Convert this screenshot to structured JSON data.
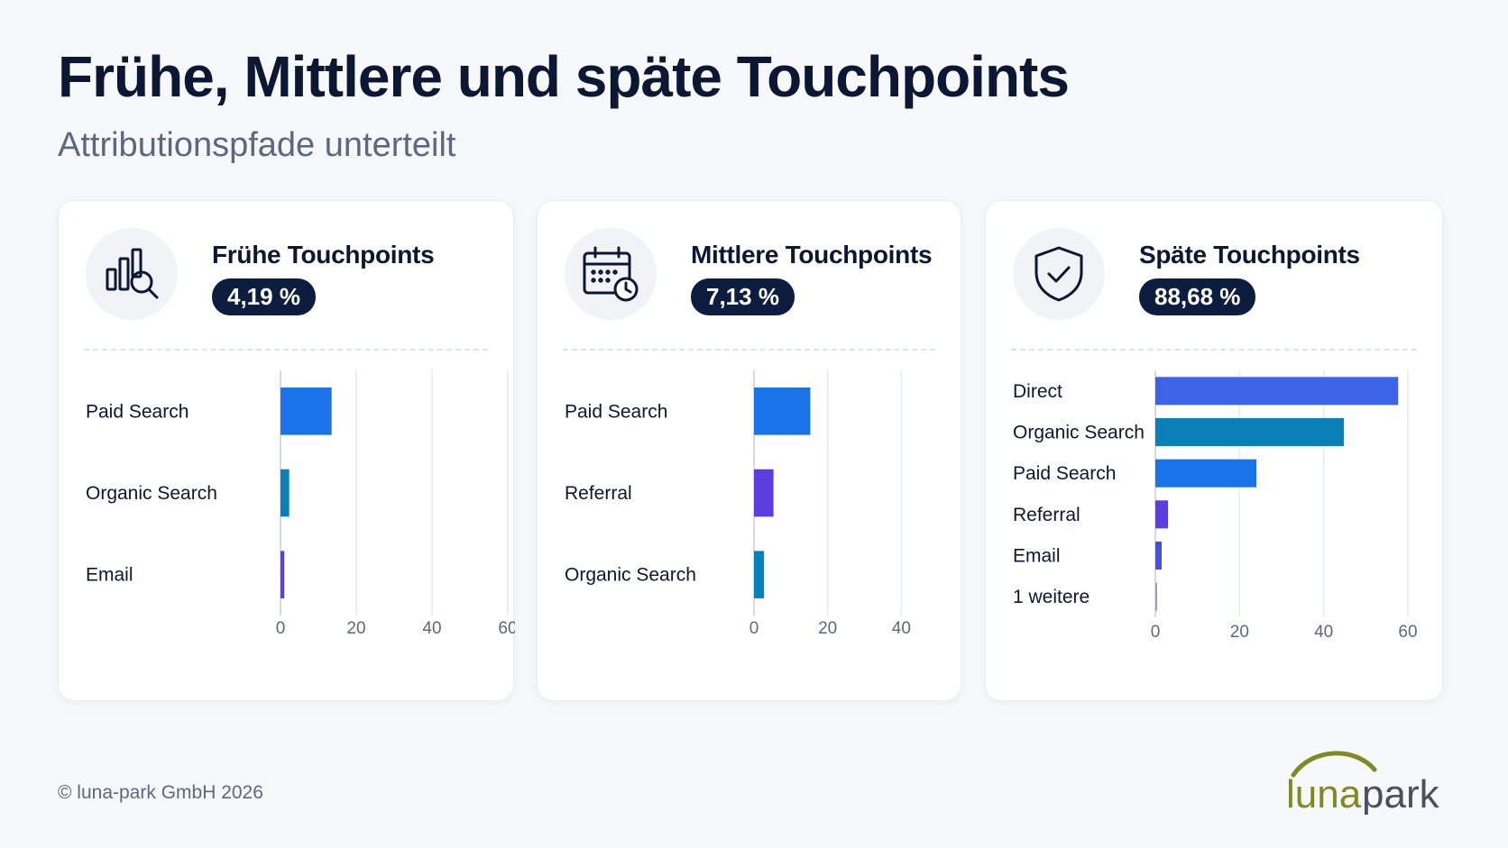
{
  "header": {
    "title": "Frühe, Mittlere und späte Touchpoints",
    "subtitle": "Attributionspfade unterteilt"
  },
  "cards": [
    {
      "title": "Frühe Touchpoints",
      "badge": "4,19 %",
      "icon": "bar-chart-search-icon"
    },
    {
      "title": "Mittlere Touchpoints",
      "badge": "7,13 %",
      "icon": "calendar-clock-icon"
    },
    {
      "title": "Späte Touchpoints",
      "badge": "88,68 %",
      "icon": "shield-check-icon"
    }
  ],
  "chart_data": [
    {
      "type": "bar",
      "orientation": "horizontal",
      "categories": [
        "Paid Search",
        "Organic Search",
        "Email"
      ],
      "values": [
        13.5,
        2.3,
        1.0
      ],
      "colors": [
        "#1a73e8",
        "#0b7fb7",
        "#5b3ee0"
      ],
      "xlim": [
        0,
        60
      ],
      "xticks": [
        "0",
        "20",
        "40",
        "60"
      ],
      "grid": true
    },
    {
      "type": "bar",
      "orientation": "horizontal",
      "categories": [
        "Paid Search",
        "Referral",
        "Organic Search"
      ],
      "values": [
        15.3,
        5.3,
        2.7
      ],
      "colors": [
        "#1a73e8",
        "#5b3ee0",
        "#0b7fb7"
      ],
      "xlim": [
        0,
        60
      ],
      "xticks": [
        "0",
        "20",
        "40",
        "60"
      ],
      "grid": true
    },
    {
      "type": "bar",
      "orientation": "horizontal",
      "categories": [
        "Direct",
        "Organic Search",
        "Paid Search",
        "Referral",
        "Email",
        "1 weitere"
      ],
      "values": [
        57.7,
        44.8,
        24.0,
        3.0,
        1.5,
        0.4
      ],
      "colors": [
        "#3d63e6",
        "#0b7fb7",
        "#1a73e8",
        "#5b3ee0",
        "#4a4fe0",
        "#9aa3b0"
      ],
      "xlim": [
        0,
        60
      ],
      "xticks": [
        "0",
        "20",
        "40",
        "60"
      ],
      "grid": true
    }
  ],
  "footer": {
    "copyright": "© luna-park GmbH 2026",
    "logo_text_luna": "luna",
    "logo_text_park": "park"
  }
}
